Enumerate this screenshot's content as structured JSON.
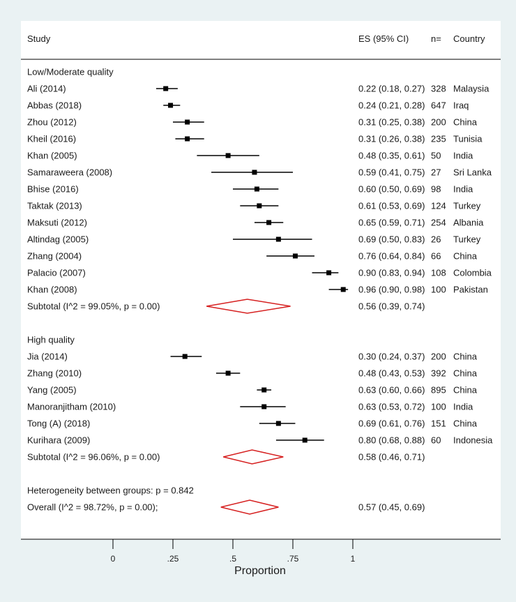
{
  "chart_data": {
    "type": "forest",
    "headers": {
      "study": "Study",
      "es": "ES (95% CI)",
      "n": "n=",
      "country": "Country"
    },
    "xlabel": "Proportion",
    "xlim": [
      0,
      1
    ],
    "ticks": [
      {
        "value": 0,
        "label": "0"
      },
      {
        "value": 0.25,
        "label": ".25"
      },
      {
        "value": 0.5,
        "label": ".5"
      },
      {
        "value": 0.75,
        "label": ".75"
      },
      {
        "value": 1,
        "label": "1"
      }
    ],
    "rows": [
      {
        "kind": "group",
        "label": "Low/Moderate quality"
      },
      {
        "kind": "study",
        "label": "Ali (2014)",
        "es": 0.22,
        "lo": 0.18,
        "hi": 0.27,
        "es_text": "0.22 (0.18, 0.27)",
        "n": "328",
        "country": "Malaysia"
      },
      {
        "kind": "study",
        "label": "Abbas (2018)",
        "es": 0.24,
        "lo": 0.21,
        "hi": 0.28,
        "es_text": "0.24 (0.21, 0.28)",
        "n": "647",
        "country": "Iraq"
      },
      {
        "kind": "study",
        "label": "Zhou (2012)",
        "es": 0.31,
        "lo": 0.25,
        "hi": 0.38,
        "es_text": "0.31 (0.25, 0.38)",
        "n": "200",
        "country": "China"
      },
      {
        "kind": "study",
        "label": "Kheil (2016)",
        "es": 0.31,
        "lo": 0.26,
        "hi": 0.38,
        "es_text": "0.31 (0.26, 0.38)",
        "n": "235",
        "country": "Tunisia"
      },
      {
        "kind": "study",
        "label": "Khan (2005)",
        "es": 0.48,
        "lo": 0.35,
        "hi": 0.61,
        "es_text": "0.48 (0.35, 0.61)",
        "n": "50",
        "country": "India"
      },
      {
        "kind": "study",
        "label": "Samaraweera (2008)",
        "es": 0.59,
        "lo": 0.41,
        "hi": 0.75,
        "es_text": "0.59 (0.41, 0.75)",
        "n": "27",
        "country": "Sri Lanka"
      },
      {
        "kind": "study",
        "label": "Bhise (2016)",
        "es": 0.6,
        "lo": 0.5,
        "hi": 0.69,
        "es_text": "0.60 (0.50, 0.69)",
        "n": "98",
        "country": "India"
      },
      {
        "kind": "study",
        "label": "Taktak (2013)",
        "es": 0.61,
        "lo": 0.53,
        "hi": 0.69,
        "es_text": "0.61 (0.53, 0.69)",
        "n": "124",
        "country": "Turkey"
      },
      {
        "kind": "study",
        "label": "Maksuti (2012)",
        "es": 0.65,
        "lo": 0.59,
        "hi": 0.71,
        "es_text": "0.65 (0.59, 0.71)",
        "n": "254",
        "country": "Albania"
      },
      {
        "kind": "study",
        "label": "Altindag (2005)",
        "es": 0.69,
        "lo": 0.5,
        "hi": 0.83,
        "es_text": "0.69 (0.50, 0.83)",
        "n": "26",
        "country": "Turkey"
      },
      {
        "kind": "study",
        "label": "Zhang (2004)",
        "es": 0.76,
        "lo": 0.64,
        "hi": 0.84,
        "es_text": "0.76 (0.64, 0.84)",
        "n": "66",
        "country": "China"
      },
      {
        "kind": "study",
        "label": "Palacio (2007)",
        "es": 0.9,
        "lo": 0.83,
        "hi": 0.94,
        "es_text": "0.90 (0.83, 0.94)",
        "n": "108",
        "country": "Colombia"
      },
      {
        "kind": "study",
        "label": "Khan (2008)",
        "es": 0.96,
        "lo": 0.9,
        "hi": 0.98,
        "es_text": "0.96 (0.90, 0.98)",
        "n": "100",
        "country": "Pakistan"
      },
      {
        "kind": "subtotal",
        "label": "Subtotal  (I^2 = 99.05%, p = 0.00)",
        "es": 0.56,
        "lo": 0.39,
        "hi": 0.74,
        "es_text": "0.56 (0.39, 0.74)"
      },
      {
        "kind": "blank"
      },
      {
        "kind": "group",
        "label": "High quality"
      },
      {
        "kind": "study",
        "label": "Jia (2014)",
        "es": 0.3,
        "lo": 0.24,
        "hi": 0.37,
        "es_text": "0.30 (0.24, 0.37)",
        "n": "200",
        "country": "China"
      },
      {
        "kind": "study",
        "label": "Zhang (2010)",
        "es": 0.48,
        "lo": 0.43,
        "hi": 0.53,
        "es_text": "0.48 (0.43, 0.53)",
        "n": "392",
        "country": "China"
      },
      {
        "kind": "study",
        "label": "Yang (2005)",
        "es": 0.63,
        "lo": 0.6,
        "hi": 0.66,
        "es_text": "0.63 (0.60, 0.66)",
        "n": "895",
        "country": "China"
      },
      {
        "kind": "study",
        "label": "Manoranjitham (2010)",
        "es": 0.63,
        "lo": 0.53,
        "hi": 0.72,
        "es_text": "0.63 (0.53, 0.72)",
        "n": "100",
        "country": "India"
      },
      {
        "kind": "study",
        "label": "Tong (A) (2018)",
        "es": 0.69,
        "lo": 0.61,
        "hi": 0.76,
        "es_text": "0.69 (0.61, 0.76)",
        "n": "151",
        "country": "China"
      },
      {
        "kind": "study",
        "label": "Kurihara (2009)",
        "es": 0.8,
        "lo": 0.68,
        "hi": 0.88,
        "es_text": "0.80 (0.68, 0.88)",
        "n": "60",
        "country": "Indonesia"
      },
      {
        "kind": "subtotal",
        "label": "Subtotal  (I^2 = 96.06%, p = 0.00)",
        "es": 0.58,
        "lo": 0.46,
        "hi": 0.71,
        "es_text": "0.58 (0.46, 0.71)"
      },
      {
        "kind": "blank"
      },
      {
        "kind": "note",
        "label": "Heterogeneity between groups: p = 0.842"
      },
      {
        "kind": "overall",
        "label": "Overall  (I^2 = 98.72%, p = 0.00);",
        "es": 0.57,
        "lo": 0.45,
        "hi": 0.69,
        "es_text": "0.57 (0.45, 0.69)"
      }
    ],
    "colors": {
      "background": "#eaf2f3",
      "panel": "#ffffff",
      "marker": "#000000",
      "diamond": "#d62020"
    }
  }
}
